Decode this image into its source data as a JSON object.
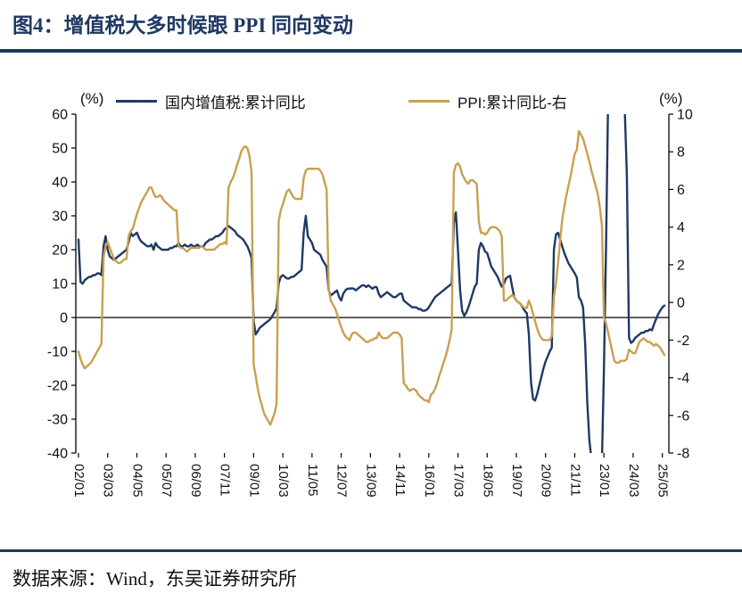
{
  "title": "图4：增值税大多时候跟 PPI 同向变动",
  "footer": "数据来源：Wind，东吴证券研究所",
  "colors": {
    "accent_navy": "#1f3864",
    "series_vat": "#1f3864",
    "series_ppi": "#c9a051",
    "axis": "#111111"
  },
  "chart_data": {
    "type": "line",
    "title": "图4：增值税大多时候跟 PPI 同向变动",
    "x_frequency": "monthly",
    "x_start": "2002-01",
    "x_end": "2025-06",
    "x_tick_interval_months": 14,
    "x_tick_labels": [
      "02/01",
      "03/03",
      "04/05",
      "05/07",
      "06/09",
      "07/11",
      "09/01",
      "10/03",
      "11/05",
      "12/07",
      "13/09",
      "14/11",
      "16/01",
      "17/03",
      "18/05",
      "19/07",
      "20/09",
      "21/11",
      "23/01",
      "24/03",
      "25/05"
    ],
    "left_axis": {
      "label": "(%)",
      "min": -40,
      "max": 60,
      "step": 10
    },
    "right_axis": {
      "label": "(%)",
      "min": -8,
      "max": 10,
      "step": 2
    },
    "grid": false,
    "legend_position": "top",
    "series": [
      {
        "name": "国内增值税:累计同比",
        "axis": "left",
        "color": "#1f3864",
        "values": [
          23,
          10.5,
          10,
          11,
          11.5,
          12,
          12,
          12.5,
          12.5,
          13,
          13,
          12.5,
          21,
          24,
          20,
          18,
          17.5,
          17,
          17.5,
          18,
          18.5,
          19,
          19.5,
          20,
          22,
          25,
          24,
          24.5,
          25,
          23.5,
          22.5,
          22,
          21.5,
          21,
          21,
          21.5,
          20,
          22,
          21,
          20.5,
          20,
          20,
          20,
          20,
          20.5,
          20.5,
          21,
          21,
          22,
          21,
          21,
          21.5,
          21,
          21,
          21.5,
          21,
          21,
          21.5,
          21,
          21,
          21,
          22,
          22.5,
          23,
          23,
          23.5,
          24,
          24,
          24.5,
          25,
          26,
          26.5,
          27,
          26.5,
          26,
          25.5,
          24.5,
          24,
          23.5,
          23,
          22,
          21,
          19.5,
          17.5,
          -1,
          -5,
          -4,
          -3,
          -2.5,
          -2,
          -1.5,
          -1,
          -0.5,
          0.5,
          1.5,
          2.7,
          10,
          12,
          12.5,
          12,
          11.5,
          11.5,
          12,
          12,
          12.5,
          13,
          13.5,
          14.1,
          25,
          30,
          24,
          23,
          22,
          20,
          19.5,
          19,
          18.5,
          17,
          16,
          15,
          8,
          6.5,
          7,
          7.5,
          8,
          6,
          5,
          7,
          8,
          8.5,
          8.5,
          8.6,
          8.5,
          8,
          8.5,
          9,
          9.5,
          9.5,
          9,
          9.5,
          9,
          8.5,
          9,
          9,
          7,
          6,
          6.5,
          7,
          7.5,
          7,
          6.5,
          6,
          6,
          6.5,
          7,
          7.1,
          5,
          4.5,
          4,
          3.5,
          3,
          3,
          3,
          2.5,
          2.5,
          2,
          2,
          2.3,
          3,
          4,
          5,
          6,
          6.5,
          7,
          7.5,
          8,
          8.5,
          9,
          9.5,
          10,
          28,
          31,
          20,
          8,
          2,
          0.5,
          1.5,
          3,
          5,
          7,
          9,
          10,
          20,
          22,
          21,
          19.5,
          19,
          17,
          15,
          14,
          13,
          12,
          10.5,
          9.1,
          10,
          11.5,
          12,
          12.3,
          9,
          6,
          5,
          4.5,
          4,
          3,
          2,
          1.3,
          -5,
          -19,
          -24,
          -24.5,
          -22.5,
          -20,
          -17.5,
          -15,
          -13,
          -11.5,
          -10,
          -8.9,
          20,
          24.5,
          25,
          23,
          21,
          19,
          17.5,
          16,
          15,
          14,
          13,
          11.8,
          6,
          5,
          3,
          -8,
          -25,
          -36,
          -42,
          -44,
          -45,
          -45.5,
          -44.5,
          -43,
          -15,
          20,
          65,
          78,
          76,
          72,
          69,
          66,
          64,
          62,
          61,
          42,
          -6,
          -7.5,
          -7,
          -6,
          -5.5,
          -5,
          -4.5,
          -4.5,
          -4,
          -4,
          -3.5,
          -3.8,
          -2,
          -0.5,
          1,
          2,
          3,
          3.5
        ]
      },
      {
        "name": "PPI:累计同比-右",
        "axis": "right",
        "color": "#c9a051",
        "values": [
          -2.6,
          -3,
          -3.3,
          -3.5,
          -3.4,
          -3.3,
          -3.2,
          -3,
          -2.8,
          -2.6,
          -2.4,
          -2.2,
          2.4,
          3,
          3.2,
          2.9,
          2.6,
          2.3,
          2.2,
          2.1,
          2.1,
          2.2,
          2.3,
          2.3,
          3.5,
          3.8,
          3.9,
          4.3,
          4.7,
          5,
          5.3,
          5.5,
          5.7,
          5.9,
          6.1,
          6.1,
          5.8,
          5.6,
          5.6,
          5.7,
          5.6,
          5.4,
          5.3,
          5.2,
          5.1,
          5,
          4.9,
          4.9,
          3,
          2.9,
          2.9,
          2.8,
          2.7,
          2.8,
          2.9,
          2.9,
          2.9,
          2.9,
          2.9,
          3,
          2.9,
          2.8,
          2.8,
          2.8,
          2.8,
          2.8,
          2.9,
          3,
          3.1,
          3.1,
          3.2,
          3.1,
          6.1,
          6.4,
          6.6,
          6.9,
          7.3,
          7.6,
          8,
          8.2,
          8.3,
          8.2,
          7.8,
          6.9,
          -3.3,
          -3.9,
          -4.6,
          -5.1,
          -5.5,
          -5.9,
          -6.1,
          -6.3,
          -6.5,
          -6.2,
          -5.9,
          -5.4,
          4.3,
          4.9,
          5.2,
          5.6,
          5.9,
          6,
          5.8,
          5.6,
          5.5,
          5.5,
          5.5,
          5.5,
          6.6,
          7,
          7.1,
          7.1,
          7.1,
          7.1,
          7.1,
          7.1,
          7,
          6.8,
          6.4,
          6,
          0.7,
          0.1,
          -0.1,
          -0.3,
          -0.6,
          -1,
          -1.3,
          -1.6,
          -1.8,
          -1.9,
          -2,
          -1.7,
          -1.6,
          -1.6,
          -1.7,
          -1.8,
          -1.9,
          -2,
          -2.1,
          -2.1,
          -2,
          -2,
          -1.9,
          -1.9,
          -1.6,
          -1.8,
          -1.9,
          -1.9,
          -1.9,
          -1.8,
          -1.7,
          -1.6,
          -1.6,
          -1.6,
          -1.7,
          -1.9,
          -4.3,
          -4.4,
          -4.6,
          -4.7,
          -4.6,
          -4.6,
          -4.7,
          -4.9,
          -5,
          -5.1,
          -5.2,
          -5.2,
          -5.3,
          -4.9,
          -4.8,
          -4.6,
          -4.3,
          -3.9,
          -3.6,
          -3.2,
          -2.9,
          -2.5,
          -2,
          -1.4,
          6.9,
          7.3,
          7.4,
          7.2,
          6.8,
          6.6,
          6.4,
          6.3,
          6.5,
          6.5,
          6.4,
          6.3,
          4.3,
          3.7,
          3.7,
          3.6,
          3.7,
          3.9,
          4,
          4,
          4,
          3.9,
          3.8,
          3.5,
          0.1,
          0.1,
          0.2,
          0.3,
          0.4,
          0.3,
          0.1,
          0,
          -0.1,
          -0.2,
          -0.3,
          -0.3,
          0.1,
          -0.2,
          -0.6,
          -1,
          -1.4,
          -1.7,
          -1.9,
          -2,
          -2,
          -2,
          -2,
          -1.8,
          0.3,
          1,
          2.1,
          3.3,
          4.4,
          5.1,
          5.7,
          6.2,
          6.7,
          7.3,
          7.9,
          8.1,
          9.1,
          8.9,
          8.7,
          8.3,
          7.9,
          7.5,
          7,
          6.6,
          6.2,
          5.8,
          5.1,
          4.1,
          -0.8,
          -1.1,
          -1.6,
          -2.1,
          -2.6,
          -3.1,
          -3.2,
          -3.2,
          -3.1,
          -3.1,
          -3.1,
          -3,
          -2.5,
          -2.6,
          -2.7,
          -2.7,
          -2.4,
          -2.1,
          -2,
          -1.9,
          -2,
          -2.1,
          -2.1,
          -2.2,
          -2.3,
          -2.2,
          -2.3,
          -2.4,
          -2.6,
          -2.8
        ]
      }
    ]
  }
}
